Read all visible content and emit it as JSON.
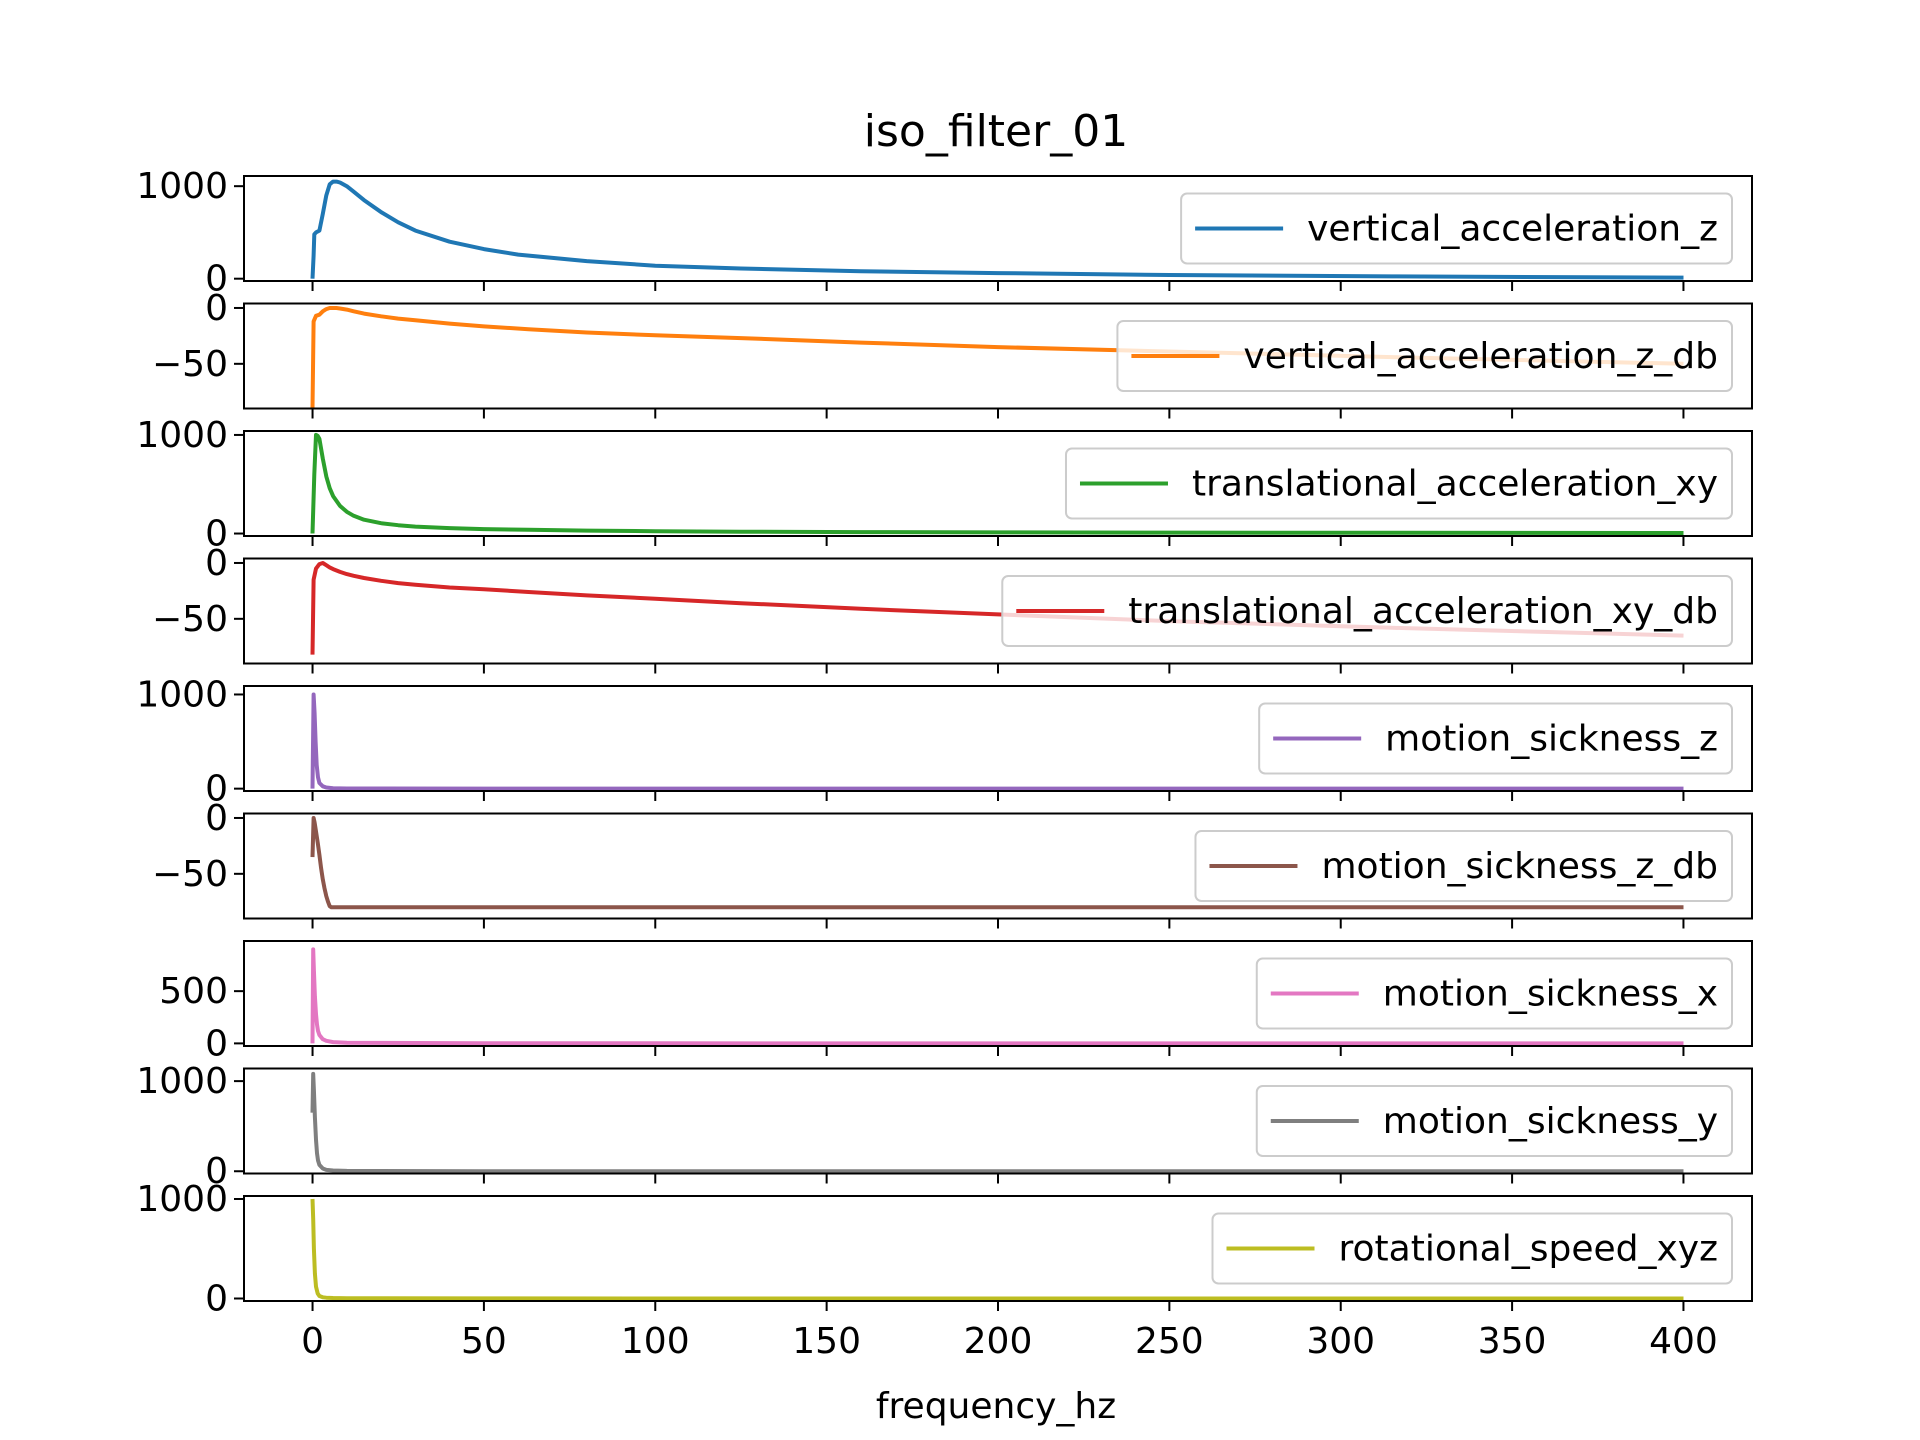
{
  "chart_data": {
    "type": "line",
    "title": "iso_filter_01",
    "xlabel": "frequency_hz",
    "xlim": [
      -20,
      420
    ],
    "x_ticks": [
      0,
      50,
      100,
      150,
      200,
      250,
      300,
      350,
      400
    ],
    "x_tick_labels": [
      "0",
      "50",
      "100",
      "150",
      "200",
      "250",
      "300",
      "350",
      "400"
    ],
    "legend_location": "right",
    "panels": [
      {
        "name": "vertical_acceleration_z",
        "color": "#1f77b4",
        "ylim": [
          -25,
          1110
        ],
        "y_ticks": [
          0,
          1000
        ],
        "y_tick_labels": [
          "0",
          "1000"
        ],
        "x": [
          0,
          0.3,
          0.5,
          1,
          2,
          3,
          4,
          5,
          6,
          7,
          8,
          10,
          12,
          15,
          20,
          25,
          30,
          40,
          50,
          60,
          80,
          100,
          125,
          160,
          200,
          250,
          315,
          400
        ],
        "y": [
          0,
          250,
          480,
          500,
          520,
          700,
          900,
          1020,
          1050,
          1050,
          1040,
          1000,
          940,
          850,
          720,
          610,
          520,
          400,
          320,
          260,
          190,
          140,
          110,
          80,
          60,
          40,
          25,
          12
        ]
      },
      {
        "name": "vertical_acceleration_z_db",
        "color": "#ff7f0e",
        "ylim": [
          -90,
          4
        ],
        "y_ticks": [
          0,
          -50
        ],
        "y_tick_labels": [
          "0",
          "−50"
        ],
        "x": [
          0,
          0.3,
          1,
          2,
          3,
          4,
          5,
          6,
          7,
          8,
          10,
          12,
          15,
          20,
          25,
          30,
          40,
          50,
          63,
          80,
          100,
          125,
          160,
          200,
          250,
          315,
          400
        ],
        "y": [
          -90,
          -12,
          -7,
          -6,
          -3,
          -1,
          0,
          0,
          0,
          -0.5,
          -1.5,
          -3,
          -5,
          -7.5,
          -9.5,
          -11,
          -14,
          -16.5,
          -19,
          -22,
          -24.5,
          -27,
          -31,
          -35,
          -39,
          -44,
          -50
        ]
      },
      {
        "name": "translational_acceleration_xy",
        "color": "#2ca02c",
        "ylim": [
          -25,
          1040
        ],
        "y_ticks": [
          0,
          1000
        ],
        "y_tick_labels": [
          "0",
          "1000"
        ],
        "x": [
          0,
          0.5,
          1,
          1.5,
          2,
          3,
          4,
          5,
          6,
          8,
          10,
          12,
          15,
          20,
          25,
          30,
          40,
          50,
          63,
          80,
          100,
          125,
          160,
          200,
          250,
          315,
          400
        ],
        "y": [
          0,
          600,
          1000,
          990,
          960,
          760,
          580,
          460,
          380,
          280,
          220,
          180,
          140,
          105,
          85,
          70,
          55,
          45,
          38,
          30,
          24,
          19,
          15,
          12,
          9,
          7,
          5
        ]
      },
      {
        "name": "translational_acceleration_xy_db",
        "color": "#d62728",
        "ylim": [
          -90,
          4
        ],
        "y_ticks": [
          0,
          -50
        ],
        "y_tick_labels": [
          "0",
          "−50"
        ],
        "x": [
          0,
          0.3,
          1,
          2,
          3,
          4,
          5,
          6,
          8,
          10,
          12,
          15,
          20,
          25,
          30,
          40,
          50,
          63,
          80,
          100,
          125,
          160,
          200,
          250,
          315,
          400
        ],
        "y": [
          -82,
          -15,
          -5,
          -1,
          0,
          -2,
          -4,
          -5.5,
          -8,
          -10,
          -11.5,
          -13.5,
          -16,
          -18,
          -19.5,
          -22,
          -23.5,
          -26,
          -29,
          -32,
          -36,
          -41,
          -46,
          -52,
          -58,
          -65
        ]
      },
      {
        "name": "motion_sickness_z",
        "color": "#9467bd",
        "ylim": [
          -25,
          1090
        ],
        "y_ticks": [
          0,
          1000
        ],
        "y_tick_labels": [
          "0",
          "1000"
        ],
        "x": [
          0,
          0.3,
          0.6,
          0.9,
          1.2,
          1.6,
          2,
          3,
          4,
          6,
          10,
          50,
          100,
          200,
          300,
          400
        ],
        "y": [
          0,
          1000,
          800,
          500,
          250,
          120,
          60,
          25,
          12,
          5,
          2,
          0,
          0,
          0,
          0,
          0
        ]
      },
      {
        "name": "motion_sickness_z_db",
        "color": "#8c564b",
        "ylim": [
          -90,
          4
        ],
        "y_ticks": [
          0,
          -50
        ],
        "y_tick_labels": [
          "0",
          "−50"
        ],
        "x": [
          0,
          0.3,
          0.6,
          1,
          1.5,
          2,
          2.5,
          3,
          3.5,
          4,
          4.5,
          5,
          5.5,
          6,
          50,
          100,
          200,
          300,
          400
        ],
        "y": [
          -35,
          0,
          -4,
          -12,
          -22,
          -33,
          -45,
          -55,
          -63,
          -70,
          -75,
          -79,
          -80,
          -80,
          -80,
          -80,
          -80,
          -80,
          -80
        ]
      },
      {
        "name": "motion_sickness_x",
        "color": "#e377c2",
        "ylim": [
          -25,
          980
        ],
        "y_ticks": [
          0,
          500
        ],
        "y_tick_labels": [
          "0",
          "500"
        ],
        "x": [
          0,
          0.2,
          0.4,
          0.7,
          1,
          1.3,
          1.6,
          2,
          3,
          4,
          6,
          10,
          50,
          100,
          200,
          300,
          400
        ],
        "y": [
          0,
          900,
          700,
          450,
          280,
          180,
          120,
          80,
          40,
          25,
          12,
          6,
          2,
          1,
          0,
          0,
          0
        ]
      },
      {
        "name": "motion_sickness_y",
        "color": "#7f7f7f",
        "ylim": [
          -25,
          1140
        ],
        "y_ticks": [
          0,
          1000
        ],
        "y_tick_labels": [
          "0",
          "1000"
        ],
        "x": [
          0,
          0.2,
          0.4,
          0.7,
          1,
          1.3,
          1.6,
          2,
          3,
          4,
          6,
          10,
          50,
          100,
          200,
          300,
          400
        ],
        "y": [
          650,
          1080,
          900,
          600,
          350,
          200,
          120,
          70,
          30,
          15,
          8,
          4,
          1,
          0,
          0,
          0,
          0
        ]
      },
      {
        "name": "rotational_speed_xyz",
        "color": "#bcbd22",
        "ylim": [
          -25,
          1030
        ],
        "y_ticks": [
          0,
          1000
        ],
        "y_tick_labels": [
          "0",
          "1000"
        ],
        "x": [
          0,
          0.2,
          0.4,
          0.7,
          1,
          1.5,
          2,
          3,
          4,
          6,
          10,
          50,
          100,
          200,
          300,
          400
        ],
        "y": [
          1000,
          800,
          500,
          250,
          120,
          50,
          25,
          12,
          8,
          5,
          3,
          1,
          0,
          0,
          0,
          0
        ]
      }
    ]
  }
}
